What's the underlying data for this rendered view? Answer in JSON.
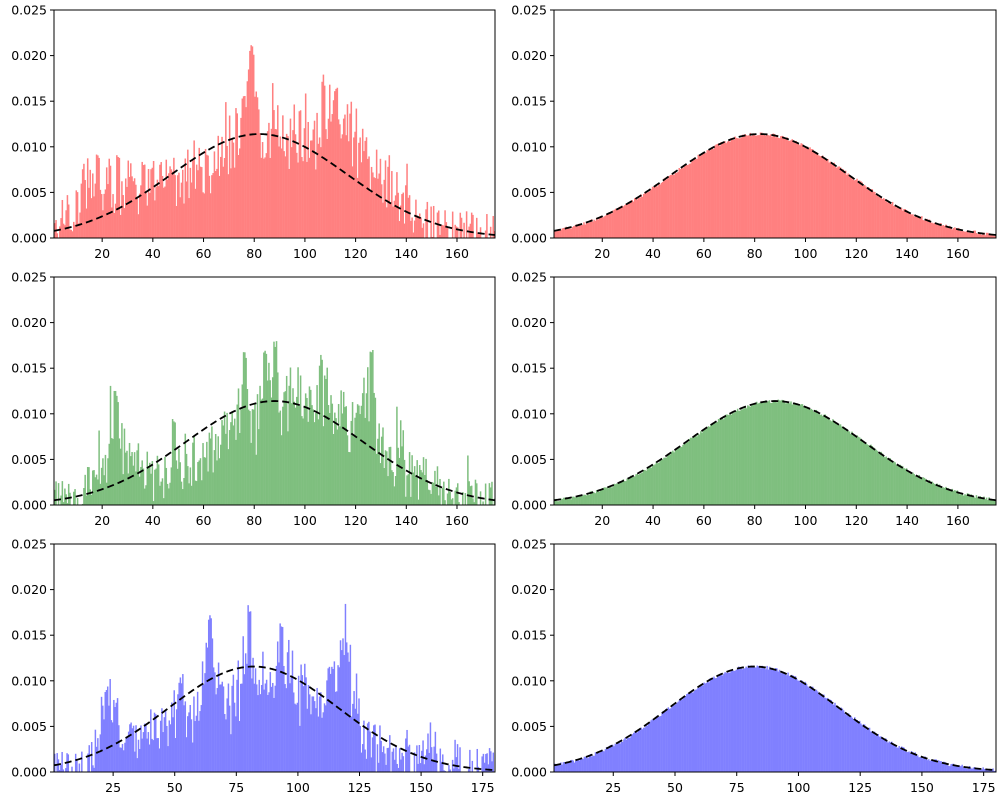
{
  "colors": {
    "red": "#ff8080",
    "green": "#7fbf7f",
    "blue": "#8080ff",
    "fit": "#000000"
  },
  "chart_data": [
    {
      "type": "bar",
      "panel": "top-left",
      "variant": "raw",
      "color": "#ff8080",
      "xlim": [
        1,
        175
      ],
      "ylim": [
        0,
        0.025
      ],
      "xticks": [
        20,
        40,
        60,
        80,
        100,
        120,
        140,
        160
      ],
      "yticks": [
        "0.000",
        "0.005",
        "0.010",
        "0.015",
        "0.020",
        "0.025"
      ],
      "fit": {
        "mean": 82,
        "std": 35
      },
      "profile": [
        [
          1,
          0.001
        ],
        [
          5,
          0.002
        ],
        [
          10,
          0.0035
        ],
        [
          14,
          0.006
        ],
        [
          18,
          0.0045
        ],
        [
          22,
          0.0075
        ],
        [
          26,
          0.004
        ],
        [
          30,
          0.006
        ],
        [
          34,
          0.003
        ],
        [
          38,
          0.006
        ],
        [
          42,
          0.007
        ],
        [
          46,
          0.0065
        ],
        [
          50,
          0.0055
        ],
        [
          54,
          0.007
        ],
        [
          58,
          0.008
        ],
        [
          62,
          0.0075
        ],
        [
          66,
          0.0085
        ],
        [
          70,
          0.01
        ],
        [
          74,
          0.012
        ],
        [
          78,
          0.0155
        ],
        [
          80,
          0.0155
        ],
        [
          82,
          0.011
        ],
        [
          86,
          0.012
        ],
        [
          90,
          0.011
        ],
        [
          94,
          0.0095
        ],
        [
          98,
          0.0125
        ],
        [
          102,
          0.0115
        ],
        [
          106,
          0.011
        ],
        [
          110,
          0.013
        ],
        [
          114,
          0.012
        ],
        [
          118,
          0.011
        ],
        [
          122,
          0.0105
        ],
        [
          126,
          0.008
        ],
        [
          130,
          0.007
        ],
        [
          134,
          0.005
        ],
        [
          138,
          0.004
        ],
        [
          142,
          0.0025
        ],
        [
          146,
          0.002
        ],
        [
          150,
          0.0012
        ],
        [
          155,
          0.001
        ],
        [
          160,
          0.0008
        ],
        [
          165,
          0.0004
        ],
        [
          170,
          0.0002
        ],
        [
          175,
          0.0001
        ]
      ],
      "spikes": [
        [
          79,
          0.0215
        ],
        [
          78,
          0.0185
        ],
        [
          107,
          0.018
        ],
        [
          112,
          0.0165
        ],
        [
          18,
          0.0095
        ],
        [
          26,
          0.0095
        ],
        [
          36,
          0.0085
        ]
      ],
      "noise": 0.0025
    },
    {
      "type": "bar",
      "panel": "top-right",
      "variant": "smooth",
      "color": "#ff8080",
      "xlim": [
        1,
        175
      ],
      "ylim": [
        0,
        0.025
      ],
      "xticks": [
        20,
        40,
        60,
        80,
        100,
        120,
        140,
        160
      ],
      "yticks": [
        "0.000",
        "0.005",
        "0.010",
        "0.015",
        "0.020",
        "0.025"
      ],
      "fit": {
        "mean": 82,
        "std": 35
      },
      "noise": 0.0002
    },
    {
      "type": "bar",
      "panel": "middle-left",
      "variant": "raw",
      "color": "#7fbf7f",
      "xlim": [
        1,
        175
      ],
      "ylim": [
        0,
        0.025
      ],
      "xticks": [
        20,
        40,
        60,
        80,
        100,
        120,
        140,
        160
      ],
      "yticks": [
        "0.000",
        "0.005",
        "0.010",
        "0.015",
        "0.020",
        "0.025"
      ],
      "fit": {
        "mean": 88,
        "std": 35
      },
      "profile": [
        [
          1,
          0.0003
        ],
        [
          6,
          0.0006
        ],
        [
          10,
          0.001
        ],
        [
          14,
          0.002
        ],
        [
          18,
          0.005
        ],
        [
          22,
          0.005
        ],
        [
          25,
          0.0085
        ],
        [
          28,
          0.0055
        ],
        [
          32,
          0.0045
        ],
        [
          35,
          0.0055
        ],
        [
          38,
          0.0035
        ],
        [
          40,
          0.003
        ],
        [
          44,
          0.0028
        ],
        [
          48,
          0.0035
        ],
        [
          52,
          0.004
        ],
        [
          56,
          0.0045
        ],
        [
          60,
          0.005
        ],
        [
          64,
          0.0065
        ],
        [
          68,
          0.0075
        ],
        [
          72,
          0.0095
        ],
        [
          76,
          0.0105
        ],
        [
          80,
          0.0095
        ],
        [
          84,
          0.012
        ],
        [
          88,
          0.012
        ],
        [
          92,
          0.0105
        ],
        [
          96,
          0.0115
        ],
        [
          100,
          0.0115
        ],
        [
          104,
          0.0125
        ],
        [
          108,
          0.011
        ],
        [
          112,
          0.0105
        ],
        [
          116,
          0.009
        ],
        [
          120,
          0.0095
        ],
        [
          124,
          0.0115
        ],
        [
          126,
          0.012
        ],
        [
          130,
          0.006
        ],
        [
          134,
          0.005
        ],
        [
          138,
          0.004
        ],
        [
          142,
          0.003
        ],
        [
          146,
          0.0035
        ],
        [
          150,
          0.0028
        ],
        [
          154,
          0.002
        ],
        [
          158,
          0.0012
        ],
        [
          162,
          0.0008
        ],
        [
          166,
          0.0005
        ],
        [
          170,
          0.0004
        ],
        [
          175,
          0.0002
        ]
      ],
      "spikes": [
        [
          25,
          0.013
        ],
        [
          88,
          0.0183
        ],
        [
          84,
          0.0175
        ],
        [
          76,
          0.0175
        ],
        [
          126,
          0.017
        ],
        [
          106,
          0.0165
        ],
        [
          48,
          0.0095
        ]
      ],
      "noise": 0.0025
    },
    {
      "type": "bar",
      "panel": "middle-right",
      "variant": "smooth",
      "color": "#7fbf7f",
      "xlim": [
        1,
        175
      ],
      "ylim": [
        0,
        0.025
      ],
      "xticks": [
        20,
        40,
        60,
        80,
        100,
        120,
        140,
        160
      ],
      "yticks": [
        "0.000",
        "0.005",
        "0.010",
        "0.015",
        "0.020",
        "0.025"
      ],
      "fit": {
        "mean": 88,
        "std": 35
      },
      "noise": 0.0002
    },
    {
      "type": "bar",
      "panel": "bottom-left",
      "variant": "raw",
      "color": "#8080ff",
      "xlim": [
        1,
        180
      ],
      "ylim": [
        0,
        0.025
      ],
      "xticks": [
        25,
        50,
        75,
        100,
        125,
        150,
        175
      ],
      "yticks": [
        "0.000",
        "0.005",
        "0.010",
        "0.015",
        "0.020",
        "0.025"
      ],
      "fit": {
        "mean": 82,
        "std": 34.5
      },
      "profile": [
        [
          1,
          0.0
        ],
        [
          8,
          0.0002
        ],
        [
          12,
          0.0006
        ],
        [
          15,
          0.001
        ],
        [
          17,
          0.003
        ],
        [
          19,
          0.0055
        ],
        [
          22,
          0.0075
        ],
        [
          25,
          0.0065
        ],
        [
          28,
          0.004
        ],
        [
          32,
          0.0035
        ],
        [
          36,
          0.004
        ],
        [
          40,
          0.0045
        ],
        [
          44,
          0.0055
        ],
        [
          48,
          0.006
        ],
        [
          52,
          0.0085
        ],
        [
          56,
          0.006
        ],
        [
          60,
          0.0085
        ],
        [
          62,
          0.013
        ],
        [
          64,
          0.012
        ],
        [
          66,
          0.0115
        ],
        [
          68,
          0.0085
        ],
        [
          72,
          0.007
        ],
        [
          76,
          0.0085
        ],
        [
          78,
          0.013
        ],
        [
          80,
          0.0155
        ],
        [
          82,
          0.0105
        ],
        [
          86,
          0.0095
        ],
        [
          90,
          0.0085
        ],
        [
          92,
          0.012
        ],
        [
          94,
          0.0145
        ],
        [
          96,
          0.011
        ],
        [
          100,
          0.009
        ],
        [
          104,
          0.0085
        ],
        [
          108,
          0.0075
        ],
        [
          112,
          0.009
        ],
        [
          116,
          0.012
        ],
        [
          120,
          0.0125
        ],
        [
          122,
          0.0075
        ],
        [
          126,
          0.004
        ],
        [
          130,
          0.003
        ],
        [
          134,
          0.0022
        ],
        [
          138,
          0.0015
        ],
        [
          142,
          0.001
        ],
        [
          146,
          0.0012
        ],
        [
          150,
          0.0008
        ],
        [
          153,
          0.003
        ],
        [
          155,
          0.003
        ],
        [
          158,
          0.0008
        ],
        [
          162,
          0.0005
        ],
        [
          168,
          0.0003
        ],
        [
          172,
          0.0002
        ],
        [
          180,
          0.0001
        ]
      ],
      "spikes": [
        [
          80,
          0.019
        ],
        [
          64,
          0.018
        ],
        [
          93,
          0.0165
        ],
        [
          118,
          0.0138
        ],
        [
          52,
          0.0105
        ],
        [
          22,
          0.0095
        ]
      ],
      "noise": 0.0025
    },
    {
      "type": "bar",
      "panel": "bottom-right",
      "variant": "smooth",
      "color": "#8080ff",
      "xlim": [
        1,
        180
      ],
      "ylim": [
        0,
        0.025
      ],
      "xticks": [
        25,
        50,
        75,
        100,
        125,
        150,
        175
      ],
      "yticks": [
        "0.000",
        "0.005",
        "0.010",
        "0.015",
        "0.020",
        "0.025"
      ],
      "fit": {
        "mean": 82,
        "std": 34.5
      },
      "noise": 0.0002
    }
  ]
}
